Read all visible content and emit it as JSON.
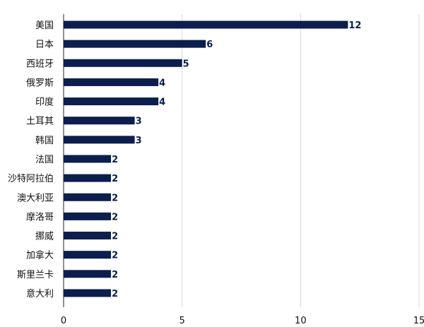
{
  "chart_data": {
    "type": "bar",
    "orientation": "horizontal",
    "categories": [
      "美国",
      "日本",
      "西班牙",
      "俄罗斯",
      "印度",
      "土耳其",
      "韩国",
      "法国",
      "沙特阿拉伯",
      "澳大利亚",
      "摩洛哥",
      "挪威",
      "加拿大",
      "斯里兰卡",
      "意大利"
    ],
    "values": [
      12,
      6,
      5,
      4,
      4,
      3,
      3,
      2,
      2,
      2,
      2,
      2,
      2,
      2,
      2
    ],
    "data_labels": [
      "12",
      "6",
      "5",
      "4",
      "4",
      "3",
      "3",
      "2",
      "2",
      "2",
      "2",
      "2",
      "2",
      "2",
      "2"
    ],
    "x_ticks": [
      "0",
      "5",
      "10",
      "15"
    ],
    "xlim": [
      0,
      15
    ],
    "grid": "vertical",
    "bar_color": "#0b1e4d",
    "grid_color": "#d9d9d9",
    "axis_color": "#222222"
  }
}
